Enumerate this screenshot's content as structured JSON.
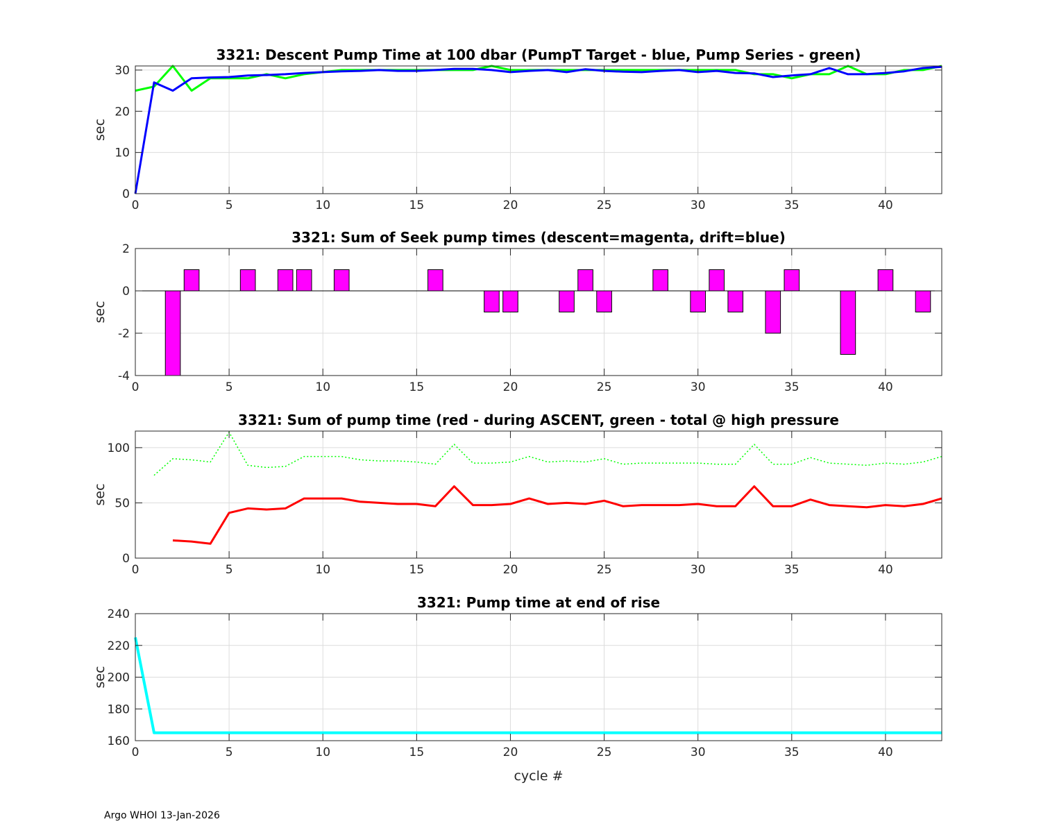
{
  "footer": "Argo WHOI 13-Jan-2026",
  "colors": {
    "green": "#00ff00",
    "blue": "#0000ff",
    "magenta": "#ff00ff",
    "red": "#ff0000",
    "cyan": "#00ffff",
    "grid": "#dcdcdc",
    "axis": "#262626"
  },
  "chart_data": [
    {
      "type": "line",
      "title": "3321: Descent Pump Time at 100 dbar (PumpT Target - blue, Pump Series - green)",
      "xlabel": "",
      "ylabel": "sec",
      "xlim": [
        0,
        43
      ],
      "ylim": [
        0,
        31
      ],
      "xticks": [
        0,
        5,
        10,
        15,
        20,
        25,
        30,
        35,
        40
      ],
      "yticks": [
        0,
        10,
        20,
        30
      ],
      "grid": true,
      "series": [
        {
          "name": "Pump Series",
          "color": "green",
          "style": "solid",
          "width": 3,
          "x": [
            0,
            1,
            2,
            3,
            4,
            5,
            6,
            7,
            8,
            9,
            10,
            11,
            12,
            13,
            14,
            15,
            16,
            17,
            18,
            19,
            20,
            21,
            22,
            23,
            24,
            25,
            26,
            27,
            28,
            29,
            30,
            31,
            32,
            33,
            34,
            35,
            36,
            37,
            38,
            39,
            40,
            41,
            42,
            43
          ],
          "y": [
            25,
            26,
            31,
            25,
            28,
            28,
            28,
            29,
            28,
            29,
            29.5,
            30,
            30,
            30,
            30,
            30,
            30,
            30,
            30,
            31,
            30,
            30,
            30,
            30,
            30,
            30,
            30,
            30,
            30,
            30,
            30,
            30,
            30,
            29,
            29,
            28,
            29,
            29,
            31,
            29,
            29,
            30,
            30,
            31
          ]
        },
        {
          "name": "PumpT Target",
          "color": "blue",
          "style": "solid",
          "width": 3,
          "x": [
            0,
            1,
            2,
            3,
            4,
            5,
            6,
            7,
            8,
            9,
            10,
            11,
            12,
            13,
            14,
            15,
            16,
            17,
            18,
            19,
            20,
            21,
            22,
            23,
            24,
            25,
            26,
            27,
            28,
            29,
            30,
            31,
            32,
            33,
            34,
            35,
            36,
            37,
            38,
            39,
            40,
            41,
            42,
            43
          ],
          "y": [
            0,
            27,
            25,
            28,
            28.2,
            28.3,
            28.7,
            28.8,
            29,
            29.3,
            29.5,
            29.7,
            29.8,
            30,
            29.8,
            29.8,
            30,
            30.3,
            30.3,
            30,
            29.5,
            29.8,
            30,
            29.5,
            30.2,
            29.8,
            29.6,
            29.5,
            29.8,
            30,
            29.5,
            29.8,
            29.3,
            29.2,
            28.3,
            28.7,
            29,
            30.5,
            29,
            29,
            29.3,
            29.7,
            30.5,
            30.8
          ]
        }
      ]
    },
    {
      "type": "bar",
      "title": "3321: Sum of Seek pump times (descent=magenta, drift=blue)",
      "xlabel": "",
      "ylabel": "sec",
      "xlim": [
        0,
        43
      ],
      "ylim": [
        -4,
        2
      ],
      "xticks": [
        0,
        5,
        10,
        15,
        20,
        25,
        30,
        35,
        40
      ],
      "yticks": [
        -4,
        -2,
        0,
        2
      ],
      "grid": true,
      "series": [
        {
          "name": "descent",
          "color": "magenta",
          "x": [
            2,
            3,
            6,
            8,
            9,
            11,
            16,
            19,
            20,
            23,
            24,
            25,
            28,
            30,
            31,
            32,
            34,
            35,
            38,
            40,
            42
          ],
          "y": [
            -4,
            1,
            1,
            1,
            1,
            1,
            1,
            -1,
            -1,
            -1,
            1,
            -1,
            1,
            -1,
            1,
            -1,
            -2,
            1,
            -3,
            1,
            -1
          ]
        }
      ]
    },
    {
      "type": "line",
      "title": "3321: Sum of pump time (red - during ASCENT, green - total @ high pressure",
      "xlabel": "",
      "ylabel": "sec",
      "xlim": [
        0,
        43
      ],
      "ylim": [
        0,
        115
      ],
      "xticks": [
        0,
        5,
        10,
        15,
        20,
        25,
        30,
        35,
        40
      ],
      "yticks": [
        0,
        50,
        100
      ],
      "grid": true,
      "series": [
        {
          "name": "total @ high pressure",
          "color": "green",
          "style": "dotted",
          "width": 1.5,
          "x": [
            1,
            2,
            3,
            4,
            5,
            6,
            7,
            8,
            9,
            10,
            11,
            12,
            13,
            14,
            15,
            16,
            17,
            18,
            19,
            20,
            21,
            22,
            23,
            24,
            25,
            26,
            27,
            28,
            29,
            30,
            31,
            32,
            33,
            34,
            35,
            36,
            37,
            38,
            39,
            40,
            41,
            42,
            43
          ],
          "y": [
            75,
            90,
            89,
            87,
            114,
            84,
            82,
            83,
            92,
            92,
            92,
            89,
            88,
            88,
            87,
            85,
            103,
            86,
            86,
            87,
            92,
            87,
            88,
            87,
            90,
            85,
            86,
            86,
            86,
            86,
            85,
            85,
            103,
            85,
            85,
            91,
            86,
            85,
            84,
            86,
            85,
            87,
            92
          ]
        },
        {
          "name": "during ASCENT",
          "color": "red",
          "style": "solid",
          "width": 3,
          "x": [
            2,
            3,
            4,
            5,
            6,
            7,
            8,
            9,
            10,
            11,
            12,
            13,
            14,
            15,
            16,
            17,
            18,
            19,
            20,
            21,
            22,
            23,
            24,
            25,
            26,
            27,
            28,
            29,
            30,
            31,
            32,
            33,
            34,
            35,
            36,
            37,
            38,
            39,
            40,
            41,
            42,
            43
          ],
          "y": [
            16,
            15,
            13,
            41,
            45,
            44,
            45,
            54,
            54,
            54,
            51,
            50,
            49,
            49,
            47,
            65,
            48,
            48,
            49,
            54,
            49,
            50,
            49,
            52,
            47,
            48,
            48,
            48,
            49,
            47,
            47,
            65,
            47,
            47,
            53,
            48,
            47,
            46,
            48,
            47,
            49,
            54
          ]
        }
      ]
    },
    {
      "type": "line",
      "title": "3321: Pump time at end of rise",
      "xlabel": "cycle #",
      "ylabel": "sec",
      "xlim": [
        0,
        43
      ],
      "ylim": [
        160,
        240
      ],
      "xticks": [
        0,
        5,
        10,
        15,
        20,
        25,
        30,
        35,
        40
      ],
      "yticks": [
        160,
        180,
        200,
        220,
        240
      ],
      "grid": true,
      "series": [
        {
          "name": "end of rise",
          "color": "cyan",
          "style": "solid",
          "width": 4,
          "x": [
            0,
            1,
            2,
            3,
            4,
            5,
            6,
            7,
            8,
            9,
            10,
            11,
            12,
            13,
            14,
            15,
            16,
            17,
            18,
            19,
            20,
            21,
            22,
            23,
            24,
            25,
            26,
            27,
            28,
            29,
            30,
            31,
            32,
            33,
            34,
            35,
            36,
            37,
            38,
            39,
            40,
            41,
            42,
            43
          ],
          "y": [
            225,
            165,
            165,
            165,
            165,
            165,
            165,
            165,
            165,
            165,
            165,
            165,
            165,
            165,
            165,
            165,
            165,
            165,
            165,
            165,
            165,
            165,
            165,
            165,
            165,
            165,
            165,
            165,
            165,
            165,
            165,
            165,
            165,
            165,
            165,
            165,
            165,
            165,
            165,
            165,
            165,
            165,
            165,
            165
          ]
        }
      ]
    }
  ]
}
